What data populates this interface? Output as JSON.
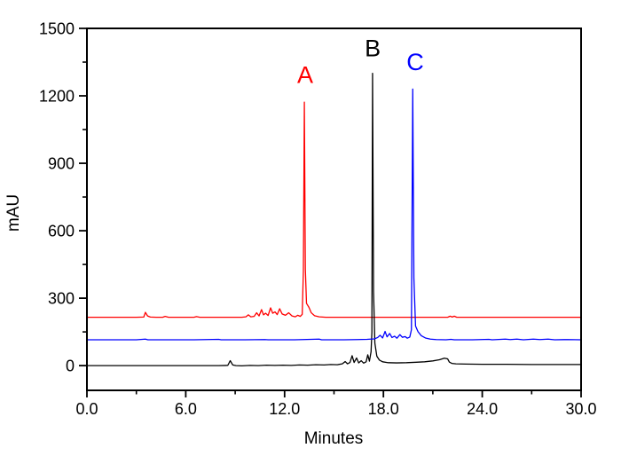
{
  "chart_data": {
    "type": "line",
    "title": "",
    "xlabel": "Minutes",
    "ylabel": "mAU",
    "xlim": [
      0,
      30
    ],
    "ylim": [
      -110,
      1500
    ],
    "grid": false,
    "frame": true,
    "legend": "none",
    "x_major_ticks": [
      0,
      6,
      12,
      18,
      24,
      30
    ],
    "x_major_tick_labels": [
      "0.0",
      "6.0",
      "12.0",
      "18.0",
      "24.0",
      "30.0"
    ],
    "x_minor_ticks": [
      3,
      9,
      15,
      21,
      27
    ],
    "y_major_ticks": [
      0,
      300,
      600,
      900,
      1200,
      1500
    ],
    "y_major_tick_labels": [
      "0",
      "300",
      "600",
      "900",
      "1200",
      "1500"
    ],
    "y_minor_ticks": [
      150,
      450,
      750,
      1050,
      1350
    ],
    "annotations": [
      {
        "text": "A",
        "x": 13.25,
        "y": 1295,
        "color": "#ff0000"
      },
      {
        "text": "B",
        "x": 17.35,
        "y": 1413,
        "color": "#000000"
      },
      {
        "text": "C",
        "x": 19.93,
        "y": 1352,
        "color": "#0000ff"
      }
    ],
    "series": [
      {
        "name": "A",
        "color": "#ff0000",
        "baseline_mAU": 215,
        "main_peak": {
          "t_min": 13.2,
          "mAU": 1172
        },
        "points": [
          [
            0,
            215
          ],
          [
            1.5,
            215
          ],
          [
            3.0,
            215
          ],
          [
            3.45,
            216
          ],
          [
            3.55,
            237
          ],
          [
            3.68,
            221
          ],
          [
            3.85,
            216
          ],
          [
            4.2,
            215
          ],
          [
            4.6,
            215
          ],
          [
            4.75,
            219
          ],
          [
            4.95,
            215
          ],
          [
            5.6,
            215
          ],
          [
            6.5,
            215
          ],
          [
            6.65,
            218
          ],
          [
            6.85,
            215
          ],
          [
            7.6,
            215
          ],
          [
            8.6,
            215
          ],
          [
            9.4,
            215
          ],
          [
            9.65,
            217
          ],
          [
            9.8,
            226
          ],
          [
            9.95,
            217
          ],
          [
            10.15,
            219
          ],
          [
            10.3,
            235
          ],
          [
            10.45,
            221
          ],
          [
            10.6,
            249
          ],
          [
            10.72,
            226
          ],
          [
            10.85,
            233
          ],
          [
            11.0,
            223
          ],
          [
            11.15,
            257
          ],
          [
            11.28,
            233
          ],
          [
            11.42,
            239
          ],
          [
            11.55,
            227
          ],
          [
            11.7,
            253
          ],
          [
            11.85,
            230
          ],
          [
            12.05,
            224
          ],
          [
            12.25,
            235
          ],
          [
            12.45,
            221
          ],
          [
            12.65,
            217
          ],
          [
            12.8,
            224
          ],
          [
            12.95,
            219
          ],
          [
            13.07,
            228
          ],
          [
            13.14,
            420
          ],
          [
            13.2,
            1172
          ],
          [
            13.26,
            430
          ],
          [
            13.33,
            277
          ],
          [
            13.48,
            259
          ],
          [
            13.62,
            235
          ],
          [
            13.82,
            222
          ],
          [
            14.1,
            217
          ],
          [
            14.5,
            215
          ],
          [
            15.5,
            215
          ],
          [
            17.0,
            215
          ],
          [
            19.0,
            215
          ],
          [
            21.0,
            215
          ],
          [
            21.9,
            215
          ],
          [
            22.05,
            220
          ],
          [
            22.18,
            216
          ],
          [
            22.3,
            220
          ],
          [
            22.45,
            215
          ],
          [
            23.5,
            215
          ],
          [
            25.5,
            215
          ],
          [
            27.5,
            215
          ],
          [
            30,
            215
          ]
        ]
      },
      {
        "name": "B",
        "color": "#000000",
        "baseline_mAU": 0,
        "main_peak": {
          "t_min": 17.34,
          "mAU": 1300
        },
        "points": [
          [
            0,
            0
          ],
          [
            2,
            0
          ],
          [
            4,
            0
          ],
          [
            6,
            0
          ],
          [
            8,
            0
          ],
          [
            8.55,
            1
          ],
          [
            8.7,
            22
          ],
          [
            8.85,
            3
          ],
          [
            9.05,
            0
          ],
          [
            9.4,
            -1
          ],
          [
            9.9,
            1
          ],
          [
            10.4,
            0
          ],
          [
            10.9,
            2
          ],
          [
            11.4,
            1
          ],
          [
            11.9,
            2
          ],
          [
            12.4,
            1
          ],
          [
            12.9,
            3
          ],
          [
            13.4,
            2
          ],
          [
            13.9,
            4
          ],
          [
            14.4,
            3
          ],
          [
            14.8,
            5
          ],
          [
            15.2,
            4
          ],
          [
            15.5,
            8
          ],
          [
            15.68,
            18
          ],
          [
            15.82,
            8
          ],
          [
            15.97,
            14
          ],
          [
            16.1,
            44
          ],
          [
            16.22,
            14
          ],
          [
            16.37,
            34
          ],
          [
            16.5,
            12
          ],
          [
            16.65,
            22
          ],
          [
            16.8,
            11
          ],
          [
            16.95,
            17
          ],
          [
            17.05,
            48
          ],
          [
            17.15,
            20
          ],
          [
            17.25,
            62
          ],
          [
            17.3,
            150
          ],
          [
            17.34,
            1300
          ],
          [
            17.4,
            330
          ],
          [
            17.48,
            100
          ],
          [
            17.6,
            42
          ],
          [
            17.75,
            25
          ],
          [
            17.95,
            17
          ],
          [
            18.3,
            13
          ],
          [
            18.8,
            12
          ],
          [
            19.4,
            13
          ],
          [
            20.0,
            15
          ],
          [
            20.5,
            17
          ],
          [
            21.0,
            21
          ],
          [
            21.4,
            26
          ],
          [
            21.7,
            33
          ],
          [
            21.9,
            30
          ],
          [
            22.0,
            16
          ],
          [
            22.15,
            10
          ],
          [
            22.4,
            8
          ],
          [
            23.0,
            7
          ],
          [
            24.0,
            6
          ],
          [
            25.5,
            6
          ],
          [
            27.0,
            5
          ],
          [
            28.5,
            5
          ],
          [
            30,
            5
          ]
        ]
      },
      {
        "name": "C",
        "color": "#0000ff",
        "baseline_mAU": 115,
        "main_peak": {
          "t_min": 19.78,
          "mAU": 1230
        },
        "points": [
          [
            0,
            115
          ],
          [
            1.5,
            115
          ],
          [
            3.0,
            115
          ],
          [
            3.55,
            118
          ],
          [
            3.7,
            115
          ],
          [
            5.0,
            115
          ],
          [
            6.5,
            115
          ],
          [
            8.0,
            117
          ],
          [
            8.15,
            115
          ],
          [
            9.6,
            115
          ],
          [
            10.8,
            116
          ],
          [
            11.0,
            115
          ],
          [
            12.6,
            115
          ],
          [
            14.1,
            118
          ],
          [
            14.25,
            115
          ],
          [
            15.6,
            115
          ],
          [
            16.4,
            116
          ],
          [
            17.0,
            117
          ],
          [
            17.45,
            119
          ],
          [
            17.65,
            125
          ],
          [
            17.8,
            135
          ],
          [
            17.95,
            123
          ],
          [
            18.1,
            152
          ],
          [
            18.22,
            128
          ],
          [
            18.38,
            143
          ],
          [
            18.52,
            125
          ],
          [
            18.68,
            131
          ],
          [
            18.82,
            122
          ],
          [
            19.0,
            138
          ],
          [
            19.15,
            126
          ],
          [
            19.32,
            129
          ],
          [
            19.45,
            122
          ],
          [
            19.6,
            127
          ],
          [
            19.7,
            160
          ],
          [
            19.78,
            1230
          ],
          [
            19.85,
            390
          ],
          [
            19.95,
            176
          ],
          [
            20.1,
            151
          ],
          [
            20.3,
            133
          ],
          [
            20.55,
            123
          ],
          [
            20.85,
            118
          ],
          [
            21.2,
            116
          ],
          [
            21.8,
            115
          ],
          [
            22.1,
            117
          ],
          [
            22.3,
            115
          ],
          [
            23.4,
            115
          ],
          [
            24.4,
            117
          ],
          [
            24.6,
            115
          ],
          [
            25.4,
            118
          ],
          [
            25.7,
            116
          ],
          [
            26.1,
            118
          ],
          [
            26.5,
            115
          ],
          [
            27.1,
            118
          ],
          [
            27.5,
            116
          ],
          [
            28.0,
            118
          ],
          [
            28.4,
            115
          ],
          [
            29.2,
            116
          ],
          [
            30,
            115
          ]
        ]
      }
    ],
    "colors": {
      "frame": "#000000",
      "background": "#ffffff",
      "trace_a": "#ff0000",
      "trace_b": "#000000",
      "trace_c": "#0000ff"
    }
  }
}
